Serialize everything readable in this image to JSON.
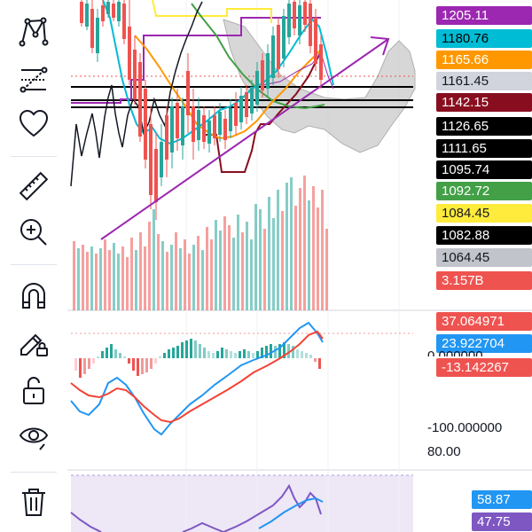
{
  "toolbar": {
    "items": [
      {
        "name": "pattern-tool",
        "icon": "pattern-icon"
      },
      {
        "name": "fib-tool",
        "icon": "fib-retracement-icon"
      },
      {
        "name": "favorites-tool",
        "icon": "heart-icon"
      },
      {
        "name": "measure-tool",
        "icon": "ruler-icon"
      },
      {
        "name": "zoom-tool",
        "icon": "zoom-in-icon"
      },
      {
        "name": "magnet-tool",
        "icon": "magnet-icon"
      },
      {
        "name": "lock-drawing-tool",
        "icon": "pencil-lock-icon"
      },
      {
        "name": "lock-tool",
        "icon": "unlock-icon"
      },
      {
        "name": "visibility-tool",
        "icon": "eye-icon"
      },
      {
        "name": "delete-tool",
        "icon": "trash-icon"
      }
    ]
  },
  "price_labels": [
    {
      "text": "1205.11",
      "bg": "#9c27b0",
      "fg": "#ffffff"
    },
    {
      "text": "1180.76",
      "bg": "#00bcd4",
      "fg": "#000000"
    },
    {
      "text": "1165.66",
      "bg": "#ff9800",
      "fg": "#ffffff"
    },
    {
      "text": "1161.45",
      "bg": "#d1d4dc",
      "fg": "#131722"
    },
    {
      "text": "1142.15",
      "bg": "#880e1f",
      "fg": "#ffffff"
    },
    {
      "text": "1126.65",
      "bg": "#000000",
      "fg": "#ffffff"
    },
    {
      "text": "1111.65",
      "bg": "#000000",
      "fg": "#ffffff"
    },
    {
      "text": "1095.74",
      "bg": "#000000",
      "fg": "#ffffff"
    },
    {
      "text": "1092.72",
      "bg": "#43a047",
      "fg": "#ffffff"
    },
    {
      "text": "1084.45",
      "bg": "#ffeb3b",
      "fg": "#131722"
    },
    {
      "text": "1082.88",
      "bg": "#000000",
      "fg": "#ffffff"
    },
    {
      "text": "1064.45",
      "bg": "#c2c4cb",
      "fg": "#131722"
    },
    {
      "text": "3.157B",
      "bg": "#ef5350",
      "fg": "#ffffff"
    }
  ],
  "macd_labels": [
    {
      "text": "37.064971",
      "bg": "#ef5350",
      "fg": "#ffffff"
    },
    {
      "text": "23.922704",
      "bg": "#2196f3",
      "fg": "#ffffff"
    },
    {
      "text": "-13.142267",
      "bg": "#ef5350",
      "fg": "#ffffff"
    }
  ],
  "macd_axis_partial": "0.000000",
  "macd_axis_label": "-100.000000",
  "rsi_axis_label": "80.00",
  "rsi_labels": [
    {
      "text": "58.87",
      "bg": "#2196f3",
      "fg": "#ffffff"
    },
    {
      "text": "47.75",
      "bg": "#7e57c2",
      "fg": "#ffffff"
    }
  ],
  "colors": {
    "up": "#26a69a",
    "down": "#ef5350",
    "trend_arrow": "#9c27b0",
    "macd_line": "#2196f3",
    "signal_line": "#f44336",
    "rsi_line": "#7e57c2",
    "rsi_band": "#ede7f6"
  }
}
